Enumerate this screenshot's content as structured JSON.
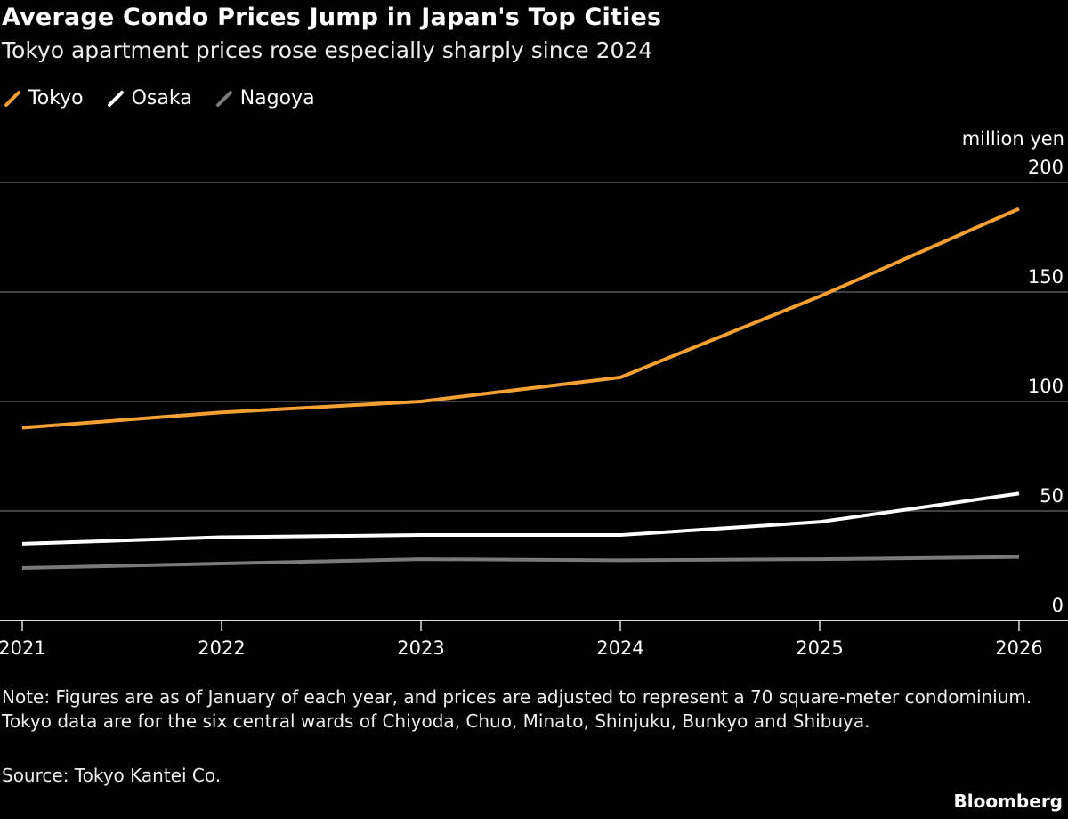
{
  "chart_data": {
    "type": "line",
    "title": "Average Condo Prices Jump in Japan's Top Cities",
    "subtitle": "Tokyo apartment prices rose especially sharply since 2024",
    "ylabel": "million yen",
    "x": [
      "2021",
      "2022",
      "2023",
      "2024",
      "2025",
      "2026"
    ],
    "ylim": [
      0,
      200
    ],
    "yticks": [
      "0",
      "50",
      "100",
      "150",
      "200"
    ],
    "grid": true,
    "legend_position": "top-left",
    "series": [
      {
        "name": "Tokyo",
        "color": "#f5a033",
        "values": [
          88,
          95,
          100,
          111,
          148,
          188
        ]
      },
      {
        "name": "Osaka",
        "color": "#ffffff",
        "values": [
          35,
          38,
          39,
          39,
          45,
          58
        ]
      },
      {
        "name": "Nagoya",
        "color": "#7a7a7a",
        "values": [
          24,
          26,
          28,
          27.5,
          28,
          29
        ]
      }
    ]
  },
  "note": "Note: Figures are as of January of each year, and prices are adjusted to represent a 70 square-meter condominium. Tokyo data are for the six central wards of Chiyoda, Chuo, Minato, Shinjuku, Bunkyo and Shibuya.",
  "source": "Source: Tokyo Kantei Co.",
  "brand": "Bloomberg"
}
